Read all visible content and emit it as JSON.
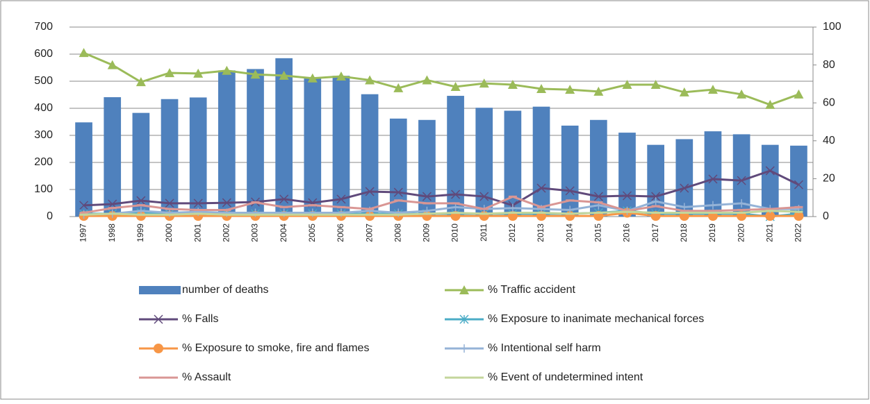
{
  "chart_data": {
    "type": "bar_line",
    "categories": [
      "1997",
      "1998",
      "1999",
      "2000",
      "2001",
      "2002",
      "2003",
      "2004",
      "2005",
      "2006",
      "2007",
      "2008",
      "2009",
      "2010",
      "2011",
      "2012",
      "2013",
      "2014",
      "2015",
      "2016",
      "2017",
      "2018",
      "2019",
      "2020",
      "2021",
      "2022"
    ],
    "ylim": [
      0,
      700
    ],
    "yticks": [
      0,
      100,
      200,
      300,
      400,
      500,
      600,
      700
    ],
    "y2lim": [
      0,
      100
    ],
    "y2ticks": [
      0,
      20,
      40,
      60,
      80,
      100
    ],
    "grid": true,
    "series": [
      {
        "name": "number of deaths",
        "type": "bar",
        "color": "#4f81bd",
        "values": [
          348,
          441,
          383,
          434,
          440,
          540,
          545,
          585,
          510,
          520,
          452,
          362,
          357,
          446,
          402,
          391,
          406,
          336,
          357,
          310,
          265,
          286,
          315,
          304,
          265,
          262
        ]
      },
      {
        "name": "% Traffic accident",
        "type": "line",
        "axis": "y2",
        "color": "#9bbb59",
        "marker": "triangle",
        "values": [
          86.4,
          80,
          71,
          75.8,
          75.5,
          77,
          75,
          74.4,
          73,
          74,
          72,
          67.8,
          72,
          68.5,
          70.3,
          69.6,
          67.4,
          67,
          66,
          69.6,
          69.6,
          65.6,
          67,
          64.5,
          59,
          64.5
        ]
      },
      {
        "name": "% Falls",
        "type": "line",
        "axis": "y2",
        "color": "#604a7b",
        "marker": "x",
        "values": [
          5.9,
          6.6,
          8.4,
          7,
          7,
          7.3,
          7.7,
          9.2,
          7.3,
          9.2,
          13.2,
          12.8,
          10.6,
          11.7,
          10.6,
          5.9,
          15,
          13.6,
          10.6,
          11,
          10.6,
          15,
          19.8,
          19,
          24.2,
          16.8
        ]
      },
      {
        "name": "% Exposure to inanimate mechanical forces",
        "type": "line",
        "axis": "y2",
        "color": "#4bacc6",
        "marker": "star",
        "values": [
          1.5,
          1.5,
          2,
          1.5,
          1.5,
          1.5,
          1.5,
          1.5,
          1.5,
          1.5,
          1.5,
          1.5,
          1.5,
          1.5,
          1.5,
          1.5,
          1.5,
          1.5,
          2,
          3,
          1.5,
          1.5,
          1.5,
          1.5,
          0,
          1.5
        ]
      },
      {
        "name": "% Exposure to smoke, fire and flames",
        "type": "line",
        "axis": "y2",
        "color": "#f79646",
        "marker": "circle",
        "values": [
          0.3,
          0.3,
          0.3,
          0.3,
          0.3,
          0.3,
          0.3,
          0.3,
          0.3,
          0.3,
          0.3,
          0.3,
          0.3,
          0.3,
          0.3,
          0.3,
          0.3,
          0.3,
          0.3,
          2,
          0.3,
          0.3,
          0.3,
          0.3,
          0.3,
          0.3
        ]
      },
      {
        "name": "% Intentional self harm",
        "type": "line",
        "axis": "y2",
        "color": "#95b3d7",
        "marker": "plus",
        "values": [
          1,
          1.5,
          3,
          2,
          2.5,
          2,
          2,
          2,
          2,
          2,
          3,
          2,
          3,
          5,
          4,
          4.5,
          4,
          3.5,
          6,
          3,
          8,
          5,
          6,
          7,
          4,
          4
        ]
      },
      {
        "name": "% Assault",
        "type": "line",
        "axis": "y2",
        "color": "#d99694",
        "marker": "dash",
        "values": [
          2,
          4.5,
          6,
          4,
          3.5,
          3.5,
          7.5,
          5,
          6,
          5,
          4,
          8.5,
          7,
          7,
          4,
          10.5,
          5,
          8.5,
          7.5,
          3,
          5.5,
          3,
          3,
          3.5,
          4,
          5
        ]
      },
      {
        "name": "% Event of undetermined intent",
        "type": "line",
        "axis": "y2",
        "color": "#c3d69b",
        "marker": "dash",
        "values": [
          1,
          1.5,
          1,
          1,
          1.5,
          1,
          1,
          1,
          1,
          1,
          1,
          1,
          1.5,
          2,
          1.5,
          2,
          2,
          1.5,
          2,
          2.5,
          2,
          2,
          2,
          2,
          3,
          2.5
        ]
      }
    ]
  }
}
